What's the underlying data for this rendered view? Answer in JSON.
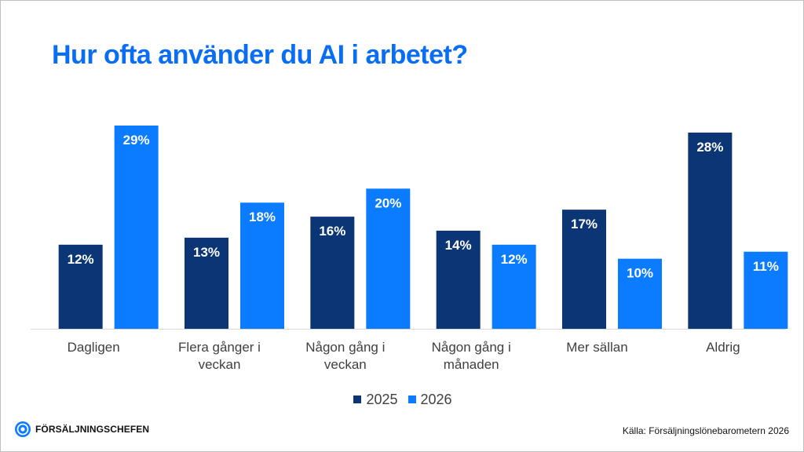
{
  "title": "Hur ofta använder du AI i arbetet?",
  "colors": {
    "title": "#0a6ef5",
    "series_2025": "#0b3575",
    "series_2026": "#0b7bff",
    "axis_label": "#404040",
    "data_label": "#ffffff",
    "axis_line": "#d9d9d9"
  },
  "logo": {
    "text": "FÖRSÄLJNINGSCHEFEN",
    "icon": "target-circle-icon"
  },
  "source": "Källa: Försäljningslönebarometern 2026",
  "chart_data": {
    "type": "bar",
    "title": "Hur ofta använder du AI i arbetet?",
    "categories": [
      [
        "Dagligen"
      ],
      [
        "Flera gånger i",
        "veckan"
      ],
      [
        "Någon gång i",
        "veckan"
      ],
      [
        "Någon gång i",
        "månaden"
      ],
      [
        "Mer sällan"
      ],
      [
        "Aldrig"
      ]
    ],
    "series": [
      {
        "name": "2025",
        "values": [
          12,
          13,
          16,
          14,
          17,
          28
        ],
        "labels": [
          "12%",
          "13%",
          "16%",
          "14%",
          "17%",
          "28%"
        ]
      },
      {
        "name": "2026",
        "values": [
          29,
          18,
          20,
          12,
          10,
          11
        ],
        "labels": [
          "29%",
          "18%",
          "20%",
          "12%",
          "10%",
          "11%"
        ]
      }
    ],
    "unit": "%",
    "ylim": [
      0,
      29
    ],
    "grid": false,
    "legend_position": "bottom"
  }
}
